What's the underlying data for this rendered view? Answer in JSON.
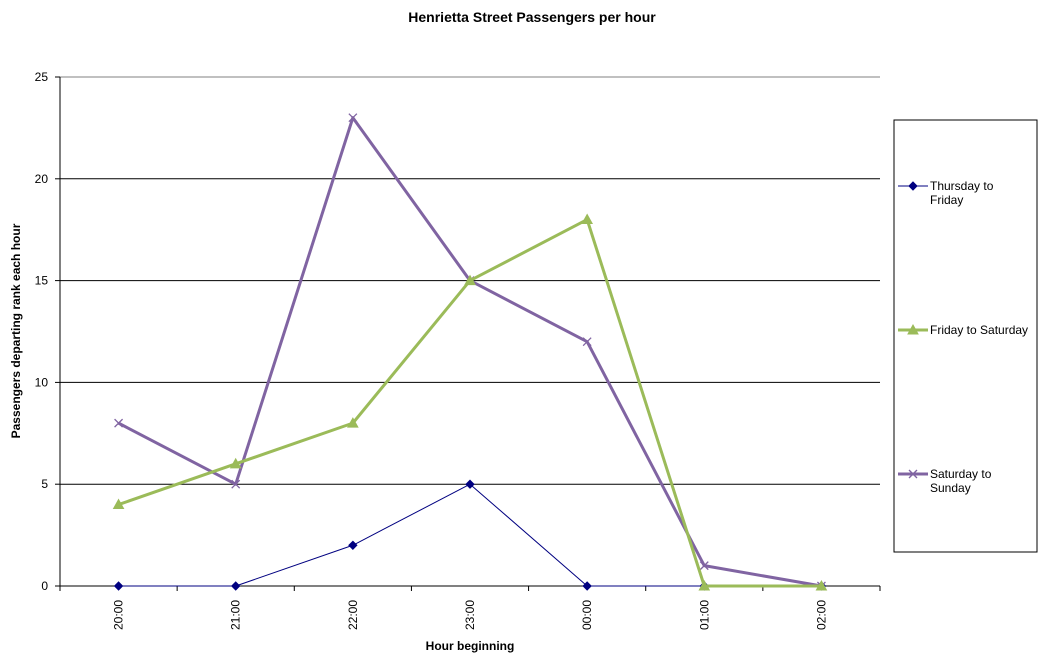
{
  "chart_data": {
    "type": "line",
    "title": "Henrietta Street Passengers per hour",
    "xlabel": "Hour beginning",
    "ylabel": "Passengers departing rank each hour",
    "categories": [
      "20:00",
      "21:00",
      "22:00",
      "23:00",
      "00:00",
      "01:00",
      "02:00"
    ],
    "ylim": [
      0,
      25
    ],
    "yticks": [
      0,
      5,
      10,
      15,
      20,
      25
    ],
    "grid": true,
    "legend_position": "right",
    "series": [
      {
        "name": "Thursday to Friday",
        "label_lines": [
          "Thursday to",
          "Friday"
        ],
        "values": [
          0,
          0,
          2,
          5,
          0,
          0,
          0
        ],
        "color": "#000080",
        "marker": "diamond",
        "width": 1
      },
      {
        "name": "Friday to Saturday",
        "label_lines": [
          "Friday to Saturday"
        ],
        "values": [
          4,
          6,
          8,
          15,
          18,
          0,
          0
        ],
        "color": "#9BBB59",
        "marker": "triangle",
        "width": 3
      },
      {
        "name": "Saturday to Sunday",
        "label_lines": [
          "Saturday to",
          "Sunday"
        ],
        "values": [
          8,
          5,
          23,
          15,
          12,
          1,
          0
        ],
        "color": "#8064A2",
        "marker": "x",
        "width": 3
      }
    ]
  }
}
